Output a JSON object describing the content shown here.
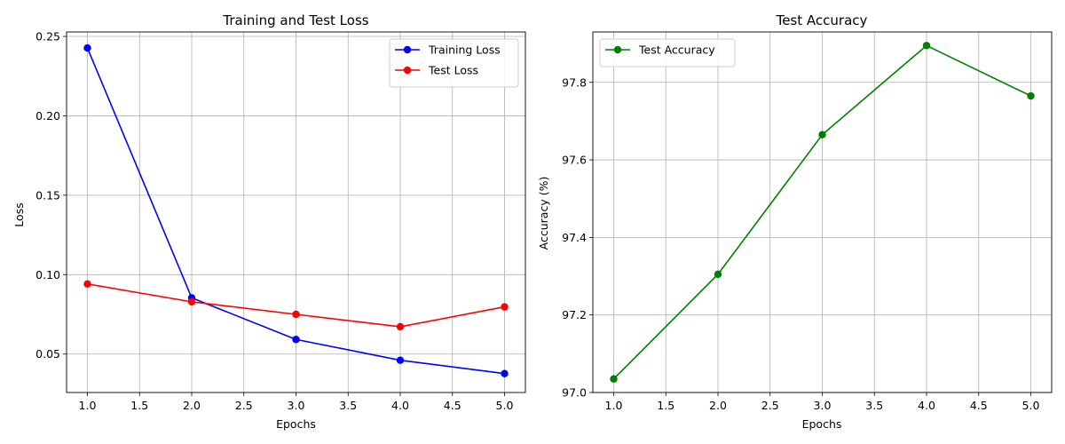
{
  "chart_data": [
    {
      "type": "line",
      "title": "Training and Test Loss",
      "xlabel": "Epochs",
      "ylabel": "Loss",
      "x": [
        1,
        2,
        3,
        4,
        5
      ],
      "xlim": [
        0.8,
        5.2
      ],
      "ylim": [
        0.0258,
        0.2528
      ],
      "xticks": [
        "1.0",
        "1.5",
        "2.0",
        "2.5",
        "3.0",
        "3.5",
        "4.0",
        "4.5",
        "5.0"
      ],
      "yticks": [
        "0.05",
        "0.10",
        "0.15",
        "0.20",
        "0.25"
      ],
      "grid": true,
      "legend": "top-right",
      "series": [
        {
          "name": "Training Loss",
          "color": "#0000ff",
          "values": [
            0.2427,
            0.0854,
            0.0592,
            0.0461,
            0.0377
          ]
        },
        {
          "name": "Test Loss",
          "color": "#ff0000",
          "values": [
            0.0941,
            0.0829,
            0.075,
            0.0672,
            0.0797
          ]
        }
      ]
    },
    {
      "type": "line",
      "title": "Test Accuracy",
      "xlabel": "Epochs",
      "ylabel": "Accuracy (%)",
      "x": [
        1,
        2,
        3,
        4,
        5
      ],
      "xlim": [
        0.8,
        5.2
      ],
      "ylim": [
        97.0,
        97.93
      ],
      "xticks": [
        "1.0",
        "1.5",
        "2.0",
        "2.5",
        "3.0",
        "3.5",
        "4.0",
        "4.5",
        "5.0"
      ],
      "yticks": [
        "97.0",
        "97.2",
        "97.4",
        "97.6",
        "97.8"
      ],
      "grid": true,
      "legend": "top-left",
      "series": [
        {
          "name": "Test Accuracy",
          "color": "#008000",
          "values": [
            97.035,
            97.305,
            97.665,
            97.895,
            97.765
          ]
        }
      ]
    }
  ]
}
